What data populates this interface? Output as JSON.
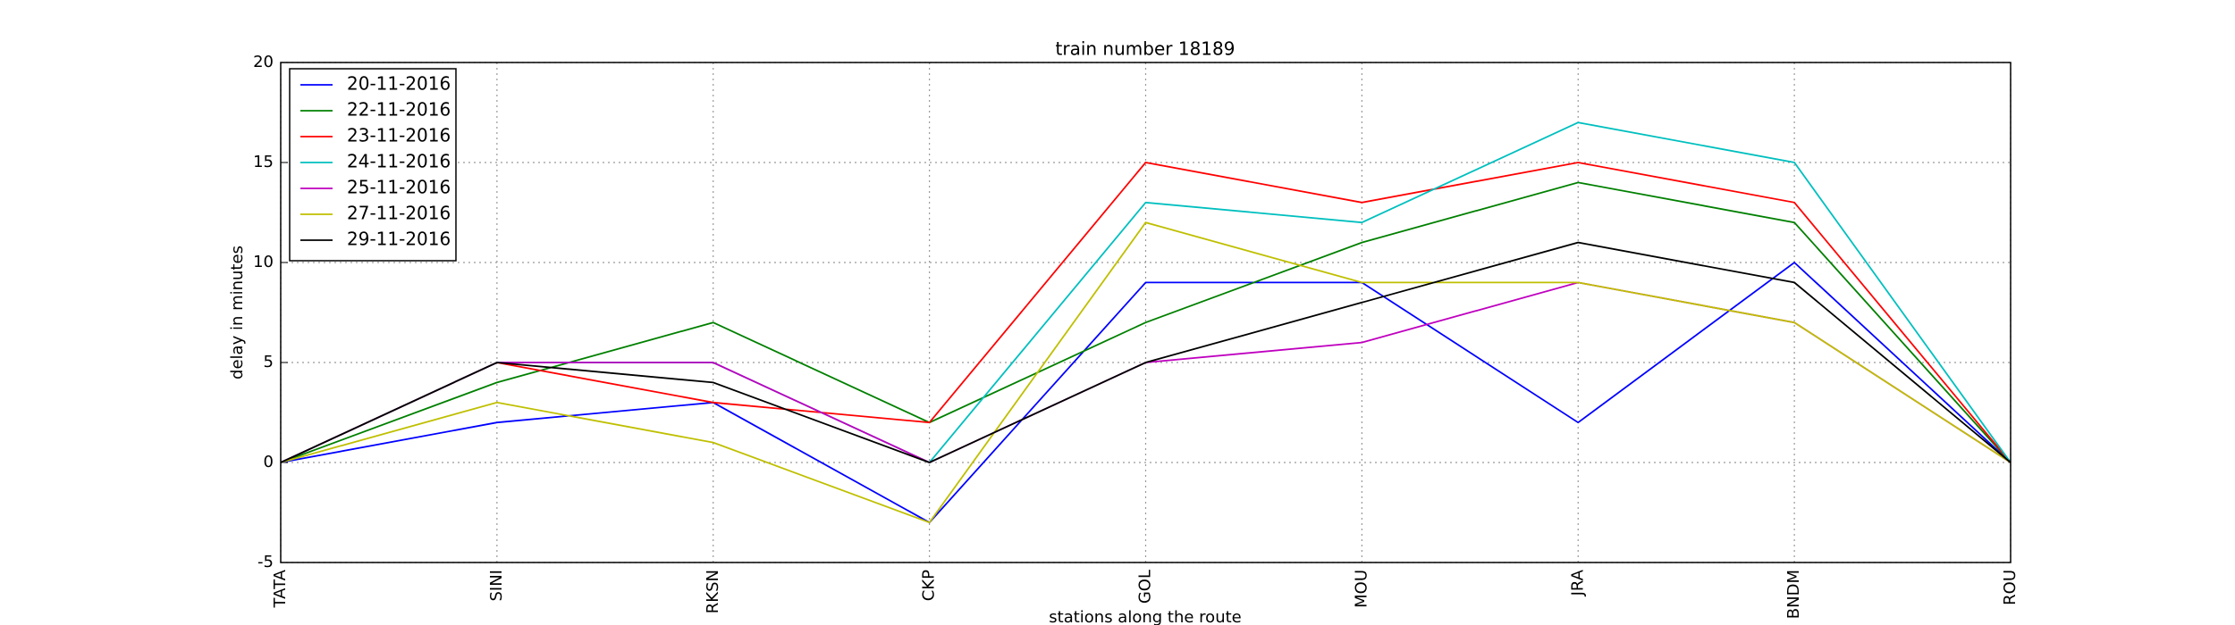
{
  "chart_data": {
    "type": "line",
    "title": "train number 18189",
    "x_label": "stations along the route",
    "y_label": "delay in minutes",
    "categories": [
      "TATA",
      "SINI",
      "RKSN",
      "CKP",
      "GOL",
      "MOU",
      "JRA",
      "BNDM",
      "ROU"
    ],
    "series": [
      {
        "name": "20-11-2016",
        "color": "#0000ff",
        "values": [
          0,
          2,
          3,
          -3,
          9,
          9,
          2,
          10,
          0
        ]
      },
      {
        "name": "22-11-2016",
        "color": "#008000",
        "values": [
          0,
          4,
          7,
          2,
          7,
          11,
          14,
          12,
          0
        ]
      },
      {
        "name": "23-11-2016",
        "color": "#ff0000",
        "values": [
          0,
          5,
          3,
          2,
          15,
          13,
          15,
          13,
          0
        ]
      },
      {
        "name": "24-11-2016",
        "color": "#00bfbf",
        "values": [
          0,
          5,
          5,
          0,
          13,
          12,
          17,
          15,
          0
        ]
      },
      {
        "name": "25-11-2016",
        "color": "#bf00bf",
        "values": [
          0,
          5,
          5,
          0,
          5,
          6,
          9,
          7,
          0
        ]
      },
      {
        "name": "27-11-2016",
        "color": "#bfbf00",
        "values": [
          0,
          3,
          1,
          -3,
          12,
          9,
          9,
          7,
          0
        ]
      },
      {
        "name": "29-11-2016",
        "color": "#000000",
        "values": [
          0,
          5,
          4,
          0,
          5,
          8,
          11,
          9,
          0
        ]
      }
    ],
    "ylim": [
      -5,
      20
    ],
    "yticks": [
      -5,
      0,
      5,
      10,
      15,
      20
    ],
    "grid": true,
    "legend": "upper left"
  }
}
